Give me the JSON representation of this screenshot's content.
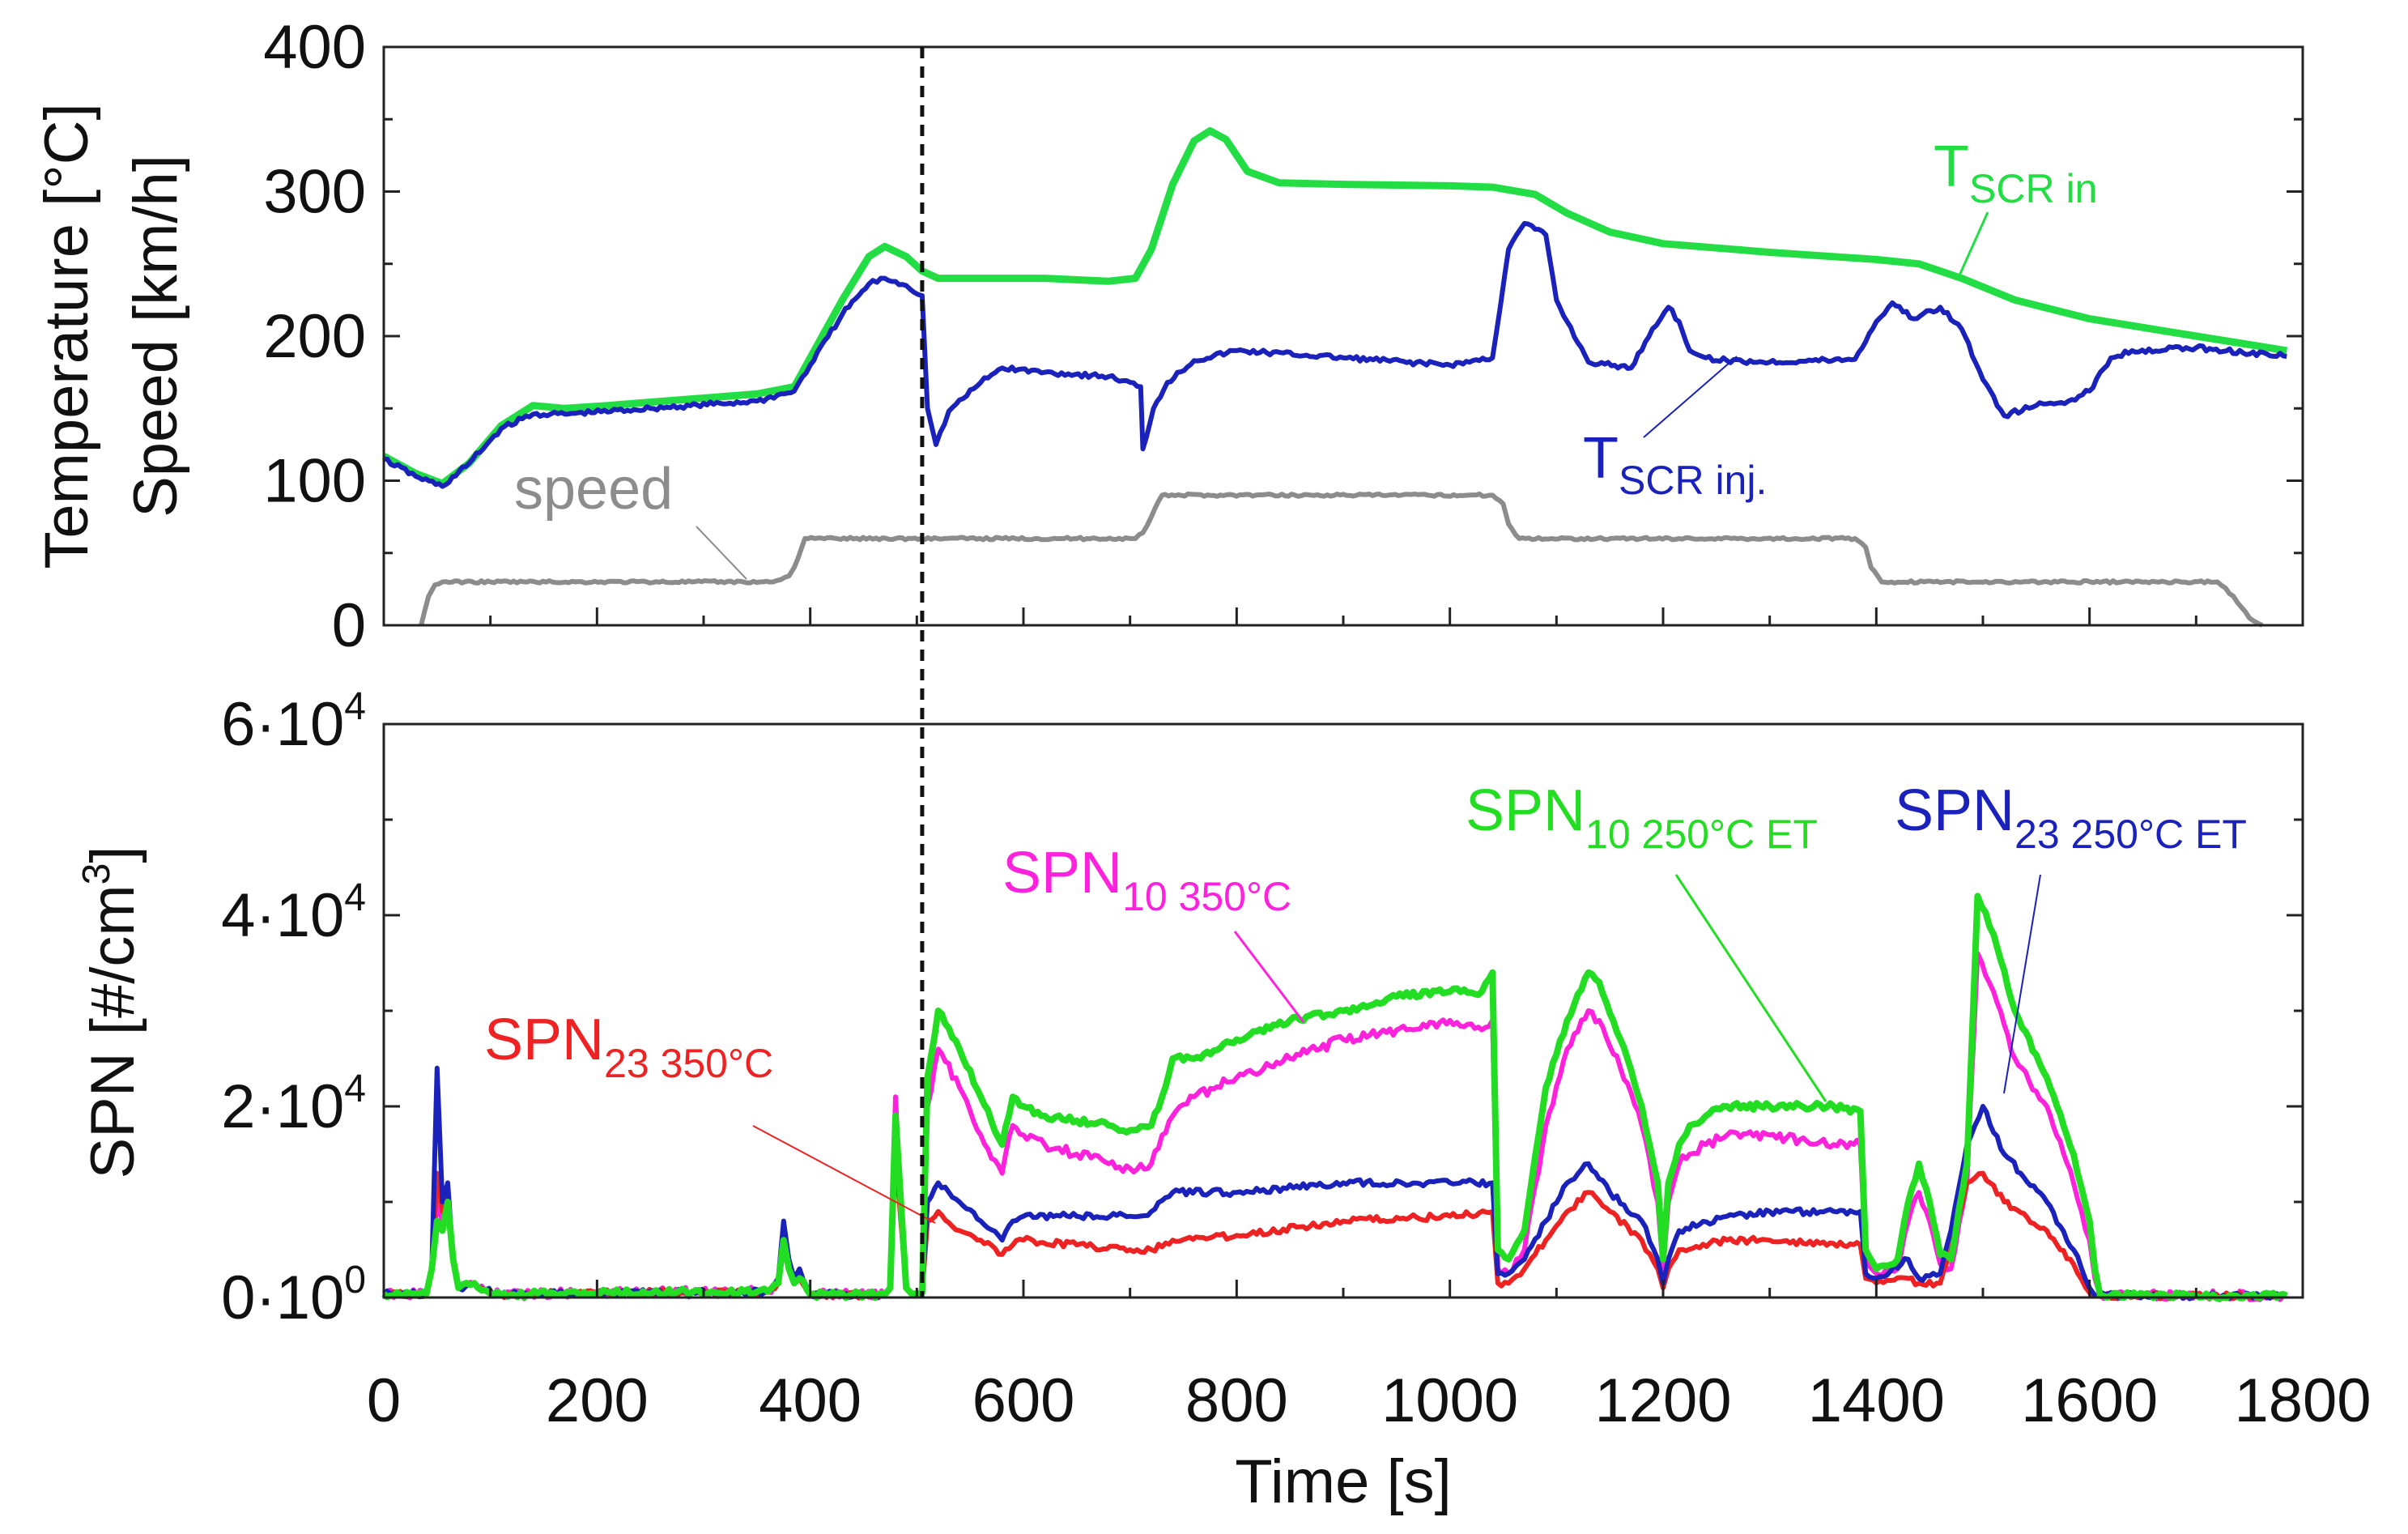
{
  "chart_data": [
    {
      "type": "line",
      "panel": "top",
      "ylabel_line1": "Temperature [°C]",
      "ylabel_line2": "Speed [km/h]",
      "ylim": [
        0,
        400
      ],
      "xlim": [
        0,
        1800
      ],
      "yticks": [
        "0",
        "100",
        "200",
        "300",
        "400"
      ],
      "grid": false,
      "series": [
        {
          "name": "T_SCR in",
          "label_main": "T",
          "label_sub": "SCR in",
          "color": "#22dd44",
          "x": [
            0,
            30,
            55,
            80,
            110,
            140,
            170,
            210,
            280,
            350,
            385,
            400,
            430,
            455,
            470,
            490,
            505,
            520,
            560,
            620,
            680,
            705,
            720,
            740,
            760,
            775,
            790,
            810,
            840,
            900,
            1000,
            1040,
            1080,
            1110,
            1150,
            1200,
            1300,
            1400,
            1440,
            1480,
            1530,
            1600,
            1700,
            1785
          ],
          "y": [
            117,
            105,
            98,
            112,
            138,
            152,
            150,
            152,
            156,
            160,
            165,
            185,
            225,
            255,
            262,
            255,
            245,
            240,
            240,
            240,
            238,
            240,
            260,
            305,
            335,
            342,
            336,
            314,
            306,
            305,
            304,
            303,
            298,
            285,
            272,
            264,
            258,
            253,
            250,
            240,
            225,
            212,
            200,
            190
          ]
        },
        {
          "name": "T_SCR inj.",
          "label_main": "T",
          "label_sub": "SCR inj.",
          "color": "#1a22bb",
          "x": [
            0,
            30,
            55,
            80,
            110,
            140,
            170,
            250,
            350,
            385,
            400,
            430,
            455,
            470,
            490,
            505,
            510,
            518,
            530,
            560,
            580,
            620,
            680,
            710,
            712,
            722,
            735,
            760,
            800,
            900,
            1000,
            1040,
            1055,
            1070,
            1090,
            1100,
            1110,
            1130,
            1170,
            1190,
            1205,
            1215,
            1225,
            1240,
            1260,
            1300,
            1380,
            1400,
            1415,
            1435,
            1460,
            1480,
            1500,
            1520,
            1550,
            1580,
            1600,
            1620,
            1640,
            1700,
            1785
          ],
          "y": [
            115,
            103,
            96,
            112,
            136,
            146,
            146,
            150,
            155,
            162,
            180,
            215,
            236,
            240,
            235,
            228,
            150,
            125,
            148,
            168,
            178,
            175,
            172,
            165,
            122,
            150,
            168,
            183,
            190,
            185,
            180,
            185,
            260,
            278,
            270,
            225,
            210,
            182,
            178,
            205,
            220,
            210,
            190,
            185,
            183,
            182,
            184,
            210,
            223,
            212,
            220,
            205,
            170,
            145,
            152,
            155,
            162,
            185,
            190,
            192,
            186
          ]
        },
        {
          "name": "speed",
          "label_main": "speed",
          "color": "#8c8c8c",
          "x": [
            35,
            42,
            48,
            55,
            365,
            380,
            385,
            395,
            705,
            712,
            720,
            730,
            1040,
            1050,
            1055,
            1065,
            1380,
            1390,
            1395,
            1405,
            1720,
            1735,
            1750,
            1762
          ],
          "y": [
            0,
            20,
            28,
            30,
            30,
            34,
            40,
            60,
            60,
            64,
            75,
            90,
            90,
            84,
            70,
            60,
            60,
            54,
            40,
            30,
            30,
            20,
            5,
            0
          ]
        }
      ]
    },
    {
      "type": "line",
      "panel": "bottom",
      "xlabel": "Time [s]",
      "ylabel_main": "SPN [#/cm",
      "ylabel_sup": "3",
      "ylabel_end": "]",
      "ylim": [
        0,
        60000
      ],
      "xlim": [
        0,
        1800
      ],
      "yticks": [
        {
          "mantissa": "0·10",
          "exp": "0"
        },
        {
          "mantissa": "2·10",
          "exp": "4"
        },
        {
          "mantissa": "4·10",
          "exp": "4"
        },
        {
          "mantissa": "6·10",
          "exp": "4"
        }
      ],
      "xticks": [
        "0",
        "200",
        "400",
        "600",
        "800",
        "1000",
        "1200",
        "1400",
        "1600",
        "1800"
      ],
      "grid": false,
      "vertical_marker_x": 505,
      "series": [
        {
          "name": "SPN10 350°C",
          "label_main": "SPN",
          "label_sub": "10 350°C",
          "color": "#ff22dd",
          "x": [
            0,
            40,
            45,
            50,
            55,
            60,
            65,
            70,
            85,
            95,
            110,
            200,
            360,
            370,
            375,
            380,
            385,
            390,
            400,
            470,
            475,
            480,
            485,
            490,
            495,
            500,
            505,
            510,
            520,
            540,
            560,
            580,
            590,
            600,
            620,
            650,
            680,
            700,
            720,
            730,
            740,
            760,
            800,
            850,
            900,
            950,
            1000,
            1030,
            1040,
            1045,
            1055,
            1070,
            1090,
            1110,
            1130,
            1140,
            1160,
            1180,
            1195,
            1200,
            1205,
            1215,
            1225,
            1240,
            1260,
            1300,
            1360,
            1385,
            1390,
            1400,
            1420,
            1430,
            1440,
            1450,
            1460,
            1470,
            1485,
            1495,
            1510,
            1530,
            1560,
            1585,
            1600,
            1605,
            1610,
            1620,
            1700,
            1785
          ],
          "y": [
            400,
            400,
            3000,
            10000,
            8000,
            10000,
            4000,
            1000,
            1500,
            800,
            300,
            500,
            600,
            1500,
            5000,
            3000,
            1500,
            2000,
            300,
            300,
            1000,
            21000,
            10000,
            1000,
            400,
            400,
            500,
            20000,
            26000,
            22000,
            17000,
            13000,
            18000,
            17000,
            16000,
            15000,
            14000,
            13500,
            14000,
            17000,
            19000,
            21000,
            23000,
            25000,
            27000,
            28000,
            29000,
            28000,
            29000,
            3000,
            2500,
            5000,
            18000,
            26000,
            30000,
            29000,
            24000,
            18000,
            10000,
            3000,
            10000,
            14000,
            15000,
            16000,
            17000,
            17000,
            16000,
            16000,
            4000,
            2500,
            3000,
            8000,
            11000,
            8000,
            3500,
            3000,
            12000,
            36000,
            32000,
            25000,
            20000,
            12000,
            6000,
            2000,
            200,
            200,
            200,
            200
          ]
        },
        {
          "name": "SPN23 350°C",
          "label_main": "SPN",
          "label_sub": "23 350°C",
          "color": "#ee2222",
          "x": [
            0,
            40,
            45,
            50,
            55,
            60,
            65,
            70,
            85,
            95,
            110,
            200,
            360,
            370,
            375,
            380,
            385,
            390,
            400,
            470,
            475,
            480,
            485,
            490,
            495,
            500,
            505,
            510,
            520,
            540,
            560,
            580,
            590,
            600,
            650,
            700,
            720,
            740,
            800,
            900,
            1000,
            1040,
            1045,
            1055,
            1070,
            1090,
            1110,
            1130,
            1150,
            1180,
            1195,
            1200,
            1205,
            1215,
            1260,
            1300,
            1385,
            1390,
            1400,
            1430,
            1440,
            1460,
            1470,
            1485,
            1500,
            1520,
            1560,
            1585,
            1600,
            1605,
            1700,
            1785
          ],
          "y": [
            400,
            400,
            3000,
            13000,
            9000,
            11000,
            4000,
            1000,
            1500,
            800,
            300,
            500,
            600,
            1500,
            5000,
            3000,
            1500,
            2000,
            300,
            300,
            1000,
            15000,
            8000,
            1000,
            400,
            400,
            500,
            8000,
            9000,
            7000,
            6000,
            4500,
            5500,
            6000,
            5500,
            5000,
            5000,
            6000,
            6500,
            8000,
            8500,
            9000,
            1500,
            1500,
            3000,
            6000,
            9000,
            11000,
            9000,
            6000,
            3000,
            1000,
            3000,
            5000,
            6000,
            6000,
            5500,
            2000,
            1500,
            2000,
            1500,
            1500,
            5000,
            12000,
            13000,
            10000,
            7000,
            3500,
            500,
            200,
            200,
            200
          ]
        },
        {
          "name": "SPN23 250°C ET",
          "label_main": "SPN",
          "label_sub": "23 250°C ET",
          "color": "#1a22bb",
          "x": [
            0,
            40,
            45,
            50,
            55,
            60,
            65,
            70,
            85,
            95,
            110,
            200,
            360,
            370,
            375,
            380,
            385,
            390,
            400,
            470,
            475,
            480,
            485,
            490,
            495,
            500,
            505,
            510,
            520,
            540,
            560,
            580,
            590,
            600,
            650,
            700,
            720,
            740,
            800,
            900,
            1000,
            1040,
            1045,
            1055,
            1070,
            1090,
            1110,
            1130,
            1150,
            1180,
            1195,
            1200,
            1205,
            1215,
            1260,
            1300,
            1385,
            1390,
            1400,
            1430,
            1440,
            1460,
            1470,
            1485,
            1500,
            1520,
            1560,
            1585,
            1600,
            1605,
            1700,
            1785
          ],
          "y": [
            400,
            400,
            3000,
            24000,
            10000,
            12000,
            4000,
            1000,
            1500,
            800,
            300,
            500,
            600,
            2000,
            8000,
            4000,
            2000,
            3000,
            300,
            300,
            1000,
            18000,
            9000,
            1000,
            400,
            400,
            500,
            10000,
            12000,
            10000,
            8000,
            6000,
            8000,
            8500,
            8500,
            8500,
            9000,
            11000,
            11000,
            12000,
            12000,
            12000,
            2500,
            2500,
            4000,
            8000,
            12000,
            14000,
            11000,
            8000,
            4000,
            1500,
            4000,
            7000,
            8500,
            9000,
            9000,
            2500,
            2000,
            4000,
            2000,
            2500,
            7000,
            16000,
            20000,
            15000,
            10000,
            5000,
            1000,
            200,
            200,
            200
          ]
        },
        {
          "name": "SPN10 250°C ET",
          "label_main": "SPN",
          "label_sub": "10 250°C ET",
          "color": "#22dd22",
          "x": [
            0,
            40,
            45,
            50,
            55,
            60,
            65,
            70,
            85,
            95,
            110,
            200,
            360,
            370,
            375,
            380,
            385,
            390,
            400,
            470,
            475,
            480,
            485,
            490,
            495,
            500,
            505,
            510,
            520,
            540,
            560,
            580,
            590,
            600,
            620,
            650,
            680,
            700,
            720,
            730,
            740,
            760,
            800,
            850,
            900,
            950,
            1000,
            1030,
            1040,
            1045,
            1055,
            1070,
            1090,
            1110,
            1130,
            1140,
            1160,
            1180,
            1195,
            1200,
            1205,
            1215,
            1225,
            1240,
            1260,
            1300,
            1360,
            1385,
            1390,
            1400,
            1420,
            1430,
            1440,
            1450,
            1460,
            1470,
            1485,
            1495,
            1510,
            1530,
            1560,
            1585,
            1600,
            1605,
            1610,
            1620,
            1700,
            1785
          ],
          "y": [
            400,
            400,
            3000,
            8000,
            7000,
            10000,
            4000,
            1000,
            1500,
            800,
            300,
            500,
            600,
            1500,
            6000,
            3000,
            1500,
            2000,
            300,
            300,
            1000,
            19000,
            10000,
            1000,
            400,
            400,
            500,
            23000,
            30000,
            26000,
            21000,
            16000,
            21000,
            20000,
            19000,
            18500,
            18000,
            17500,
            18000,
            21000,
            25000,
            25000,
            27000,
            29000,
            30000,
            31500,
            32000,
            32000,
            34000,
            5000,
            4000,
            7000,
            22000,
            29000,
            34000,
            33000,
            27000,
            20000,
            12000,
            4000,
            12000,
            16000,
            18000,
            19000,
            20000,
            20000,
            20000,
            19500,
            5000,
            3000,
            4000,
            10000,
            14000,
            10000,
            4500,
            4000,
            14000,
            42000,
            38000,
            30000,
            23000,
            15000,
            8000,
            3000,
            200,
            200,
            200,
            200
          ]
        }
      ]
    }
  ]
}
